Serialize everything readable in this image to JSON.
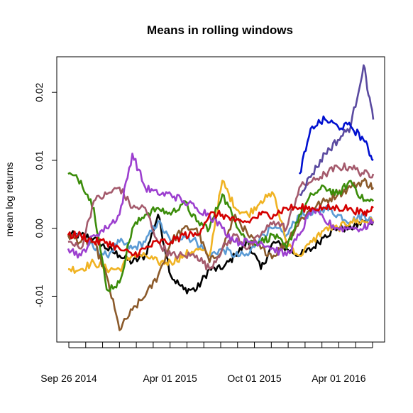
{
  "chart_data": {
    "type": "line",
    "title": "Means in rolling windows",
    "xlabel": "",
    "ylabel": "mean log returns",
    "x_tick_labels": [
      "Sep 26 2014",
      "Apr 01 2015",
      "Oct 01 2015",
      "Apr 01 2016"
    ],
    "x_tick_count": 19,
    "x_label_tick_index": [
      0,
      6,
      11,
      16
    ],
    "y_ticks": [
      -0.01,
      0.0,
      0.01,
      0.02
    ],
    "y_tick_labels": [
      "-0.01",
      "0.00",
      "0.01",
      "0.02"
    ],
    "ylim": [
      -0.0158,
      0.0243
    ],
    "x": [
      0,
      8,
      16,
      24,
      32,
      40,
      48,
      56,
      64,
      72,
      80,
      88,
      96,
      104,
      112,
      120,
      128,
      136,
      144,
      152,
      160,
      168,
      176,
      184,
      190
    ],
    "series": [
      {
        "name": "series-black",
        "color": "#000000",
        "values": [
          -0.001,
          -0.001,
          -0.0015,
          -0.003,
          -0.004,
          -0.005,
          -0.004,
          0.002,
          -0.007,
          -0.009,
          -0.009,
          -0.006,
          -0.006,
          -0.004,
          -0.002,
          -0.006,
          -0.002,
          -0.003,
          -0.004,
          -0.003,
          -0.001,
          0.0,
          0.0,
          0.001,
          0.001
        ]
      },
      {
        "name": "series-steelblue",
        "color": "#5B9BD5",
        "values": [
          -0.001,
          -0.001,
          -0.003,
          -0.004,
          -0.002,
          -0.003,
          -0.002,
          0.001,
          -0.002,
          -0.001,
          -0.002,
          -0.004,
          -0.003,
          -0.004,
          -0.004,
          -0.001,
          0.0,
          -0.001,
          0.002,
          0.002,
          0.003,
          0.002,
          0.001,
          0.002,
          0.001
        ]
      },
      {
        "name": "series-goldenrod",
        "color": "#F0B323",
        "values": [
          -0.006,
          -0.006,
          -0.005,
          -0.006,
          -0.006,
          -0.004,
          -0.004,
          -0.005,
          -0.005,
          -0.004,
          -0.003,
          -0.004,
          0.007,
          0.003,
          0.002,
          0.004,
          0.005,
          -0.002,
          -0.004,
          -0.002,
          0.0,
          0.0,
          0.001,
          0.001,
          0.001
        ]
      },
      {
        "name": "series-brown",
        "color": "#8B5A2B",
        "values": [
          -0.001,
          -0.002,
          -0.002,
          -0.007,
          -0.015,
          -0.012,
          -0.01,
          -0.007,
          -0.002,
          0.0,
          0.0,
          -0.005,
          -0.003,
          0.002,
          -0.001,
          -0.003,
          -0.004,
          -0.002,
          0.001,
          0.003,
          0.004,
          0.005,
          0.006,
          0.007,
          0.006
        ]
      },
      {
        "name": "series-green",
        "color": "#3B8C0A",
        "values": [
          0.008,
          0.007,
          0.003,
          -0.009,
          -0.008,
          0.0,
          0.002,
          0.003,
          0.002,
          0.004,
          0.001,
          0.0,
          0.005,
          0.001,
          -0.002,
          -0.002,
          -0.001,
          -0.003,
          0.002,
          0.005,
          0.006,
          0.005,
          0.007,
          0.004,
          0.004
        ]
      },
      {
        "name": "series-mauve",
        "color": "#A45A6C",
        "values": [
          -0.002,
          -0.003,
          0.004,
          0.005,
          0.006,
          0.003,
          0.003,
          -0.002,
          -0.004,
          -0.004,
          -0.004,
          -0.006,
          -0.003,
          -0.001,
          -0.003,
          -0.001,
          0.001,
          0.0,
          0.006,
          0.007,
          0.008,
          0.009,
          0.009,
          0.008,
          0.008
        ]
      },
      {
        "name": "series-purple",
        "color": "#9C3FCF",
        "values": [
          -0.003,
          -0.004,
          -0.001,
          0.0,
          0.002,
          0.011,
          0.006,
          0.005,
          0.005,
          0.004,
          0.003,
          0.002,
          0.0,
          -0.002,
          -0.002,
          -0.002,
          -0.003,
          -0.004,
          -0.001,
          0.003,
          0.001,
          0.0,
          0.0,
          0.0,
          0.001
        ]
      },
      {
        "name": "series-red",
        "color": "#D40000",
        "values": [
          -0.001,
          -0.001,
          -0.002,
          -0.002,
          -0.003,
          -0.004,
          -0.003,
          -0.002,
          -0.002,
          -0.001,
          -0.001,
          0.002,
          0.002,
          0.001,
          0.001,
          0.002,
          0.002,
          0.003,
          0.003,
          0.003,
          0.003,
          0.003,
          0.003,
          0.002,
          0.003
        ]
      },
      {
        "name": "series-slateblue",
        "color": "#5A4AA0",
        "values": [
          null,
          null,
          null,
          null,
          null,
          null,
          null,
          null,
          null,
          null,
          null,
          null,
          null,
          null,
          null,
          null,
          null,
          null,
          0.005,
          0.008,
          0.011,
          0.013,
          0.015,
          0.024,
          0.016
        ]
      },
      {
        "name": "series-blue",
        "color": "#0010D0",
        "values": [
          null,
          null,
          null,
          null,
          null,
          null,
          null,
          null,
          null,
          null,
          null,
          null,
          null,
          null,
          null,
          null,
          null,
          null,
          0.008,
          0.015,
          0.016,
          0.015,
          0.015,
          0.013,
          0.01
        ]
      }
    ]
  }
}
